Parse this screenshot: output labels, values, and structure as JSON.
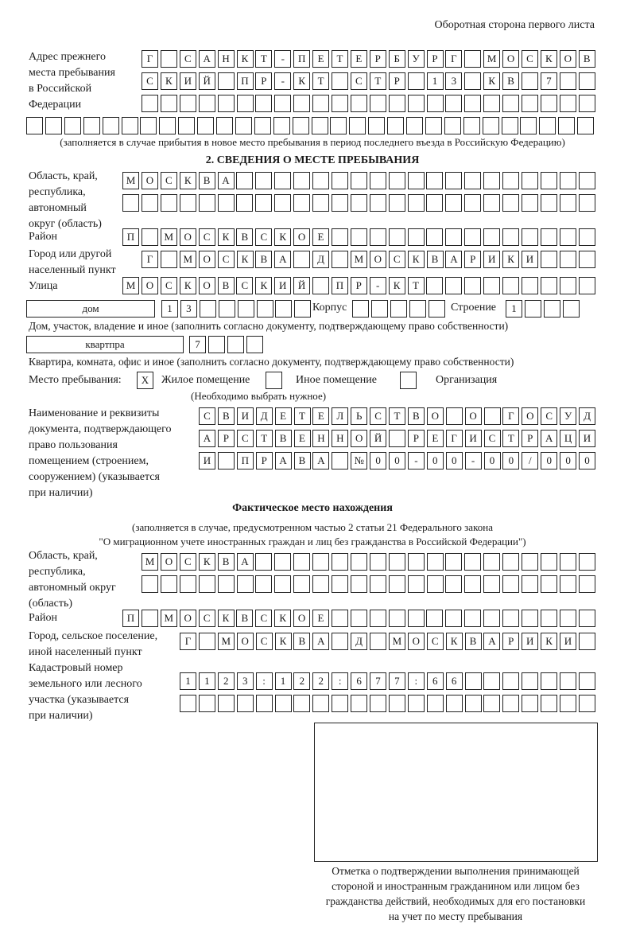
{
  "header": "Оборотная сторона первого листа",
  "previous_address": {
    "label": [
      "Адрес прежнего",
      "места пребывания",
      "в Российской",
      "Федерации"
    ],
    "rows": [
      [
        "Г",
        "",
        "С",
        "А",
        "Н",
        "К",
        "Т",
        "-",
        "П",
        "Е",
        "Т",
        "Е",
        "Р",
        "Б",
        "У",
        "Р",
        "Г",
        "",
        "М",
        "О",
        "С",
        "К",
        "О",
        "В"
      ],
      [
        "С",
        "К",
        "И",
        "Й",
        "",
        "П",
        "Р",
        "-",
        "К",
        "Т",
        "",
        "С",
        "Т",
        "Р",
        "",
        "1",
        "3",
        "",
        "К",
        "В",
        "",
        "7",
        "",
        ""
      ],
      [
        "",
        "",
        "",
        "",
        "",
        "",
        "",
        "",
        "",
        "",
        "",
        "",
        "",
        "",
        "",
        "",
        "",
        "",
        "",
        "",
        "",
        "",
        "",
        ""
      ],
      [
        "",
        "",
        "",
        "",
        "",
        "",
        "",
        "",
        "",
        "",
        "",
        "",
        "",
        "",
        "",
        "",
        "",
        "",
        "",
        "",
        "",
        "",
        "",
        "",
        "",
        "",
        "",
        "",
        "",
        ""
      ]
    ],
    "note": "(заполняется в случае прибытия в новое место пребывания в период последнего въезда в Российскую Федерацию)"
  },
  "section2": {
    "title": "2. СВЕДЕНИЯ О МЕСТЕ ПРЕБЫВАНИЯ",
    "region_label": [
      "Область, край,",
      "республика,",
      "автономный",
      "округ (область)"
    ],
    "region_rows": [
      [
        "М",
        "О",
        "С",
        "К",
        "В",
        "А",
        "",
        "",
        "",
        "",
        "",
        "",
        "",
        "",
        "",
        "",
        "",
        "",
        "",
        "",
        "",
        "",
        "",
        "",
        ""
      ],
      [
        "",
        "",
        "",
        "",
        "",
        "",
        "",
        "",
        "",
        "",
        "",
        "",
        "",
        "",
        "",
        "",
        "",
        "",
        "",
        "",
        "",
        "",
        "",
        "",
        ""
      ]
    ],
    "district_label": "Район",
    "district_row": [
      "П",
      "",
      "М",
      "О",
      "С",
      "К",
      "В",
      "С",
      "К",
      "О",
      "Е",
      "",
      "",
      "",
      "",
      "",
      "",
      "",
      "",
      "",
      "",
      "",
      "",
      "",
      ""
    ],
    "city_label": [
      "Город или другой",
      "населенный пункт"
    ],
    "city_row": [
      "Г",
      "",
      "М",
      "О",
      "С",
      "К",
      "В",
      "А",
      "",
      "Д",
      "",
      "М",
      "О",
      "С",
      "К",
      "В",
      "А",
      "Р",
      "И",
      "К",
      "И",
      "",
      "",
      ""
    ],
    "street_label": "Улица",
    "street_row": [
      "М",
      "О",
      "С",
      "К",
      "О",
      "В",
      "С",
      "К",
      "И",
      "Й",
      "",
      "П",
      "Р",
      "-",
      "К",
      "Т",
      "",
      "",
      "",
      "",
      "",
      "",
      "",
      "",
      ""
    ],
    "house_type": "дом",
    "house_cells": [
      "1",
      "3",
      "",
      "",
      "",
      "",
      "",
      ""
    ],
    "korpus_label": "Корпус",
    "korpus_cells": [
      "",
      "",
      "",
      "",
      ""
    ],
    "building_label": "Строение",
    "building_cells": [
      "1",
      "",
      "",
      ""
    ],
    "house_note": "Дом, участок, владение и иное (заполнить согласно документу, подтверждающему право собственности)",
    "flat_type": "квартпра",
    "flat_cells": [
      "7",
      "",
      "",
      ""
    ],
    "flat_note": "Квартира, комната, офис и иное (заполнить согласно документу, подтверждающему право собственности)",
    "place_label": "Место пребывания:",
    "place_options": [
      {
        "label": "Жилое помещение",
        "mark": "X"
      },
      {
        "label": "Иное помещение",
        "mark": ""
      },
      {
        "label": "Организация",
        "mark": ""
      }
    ],
    "place_note": "(Необходимо выбрать нужное)",
    "doc_label": [
      "Наименование и реквизиты",
      "документа, подтверждающего",
      "право пользования",
      "помещением (строением,",
      "сооружением) (указывается",
      "при наличии)"
    ],
    "doc_rows": [
      [
        "С",
        "В",
        "И",
        "Д",
        "Е",
        "Т",
        "Е",
        "Л",
        "Ь",
        "С",
        "Т",
        "В",
        "О",
        "",
        "О",
        "",
        "Г",
        "О",
        "С",
        "У",
        "Д"
      ],
      [
        "А",
        "Р",
        "С",
        "Т",
        "В",
        "Е",
        "Н",
        "Н",
        "О",
        "Й",
        "",
        "Р",
        "Е",
        "Г",
        "И",
        "С",
        "Т",
        "Р",
        "А",
        "Ц",
        "И"
      ],
      [
        "И",
        "",
        "П",
        "Р",
        "А",
        "В",
        "А",
        "",
        "№",
        "0",
        "0",
        "-",
        "0",
        "0",
        "-",
        "0",
        "0",
        "/",
        "0",
        "0",
        "0"
      ]
    ]
  },
  "actual": {
    "title": "Фактическое место нахождения",
    "note1": "(заполняется в случае, предусмотренном частью 2 статьи 21 Федерального закона",
    "note2": "\"О миграционном учете иностранных граждан и лиц без гражданства в Российской Федерации\")",
    "region_label": [
      "Область, край,",
      "республика,",
      "автономный округ",
      "(область)"
    ],
    "region_rows": [
      [
        "М",
        "О",
        "С",
        "К",
        "В",
        "А",
        "",
        "",
        "",
        "",
        "",
        "",
        "",
        "",
        "",
        "",
        "",
        "",
        "",
        "",
        "",
        "",
        "",
        ""
      ],
      [
        "",
        "",
        "",
        "",
        "",
        "",
        "",
        "",
        "",
        "",
        "",
        "",
        "",
        "",
        "",
        "",
        "",
        "",
        "",
        "",
        "",
        "",
        "",
        ""
      ]
    ],
    "district_label": "Район",
    "district_row": [
      "П",
      "",
      "М",
      "О",
      "С",
      "К",
      "В",
      "С",
      "К",
      "О",
      "Е",
      "",
      "",
      "",
      "",
      "",
      "",
      "",
      "",
      "",
      "",
      "",
      "",
      "",
      ""
    ],
    "city_label": [
      "Город, сельское поселение,",
      "иной населенный пункт"
    ],
    "city_row": [
      "Г",
      "",
      "М",
      "О",
      "С",
      "К",
      "В",
      "А",
      "",
      "Д",
      "",
      "М",
      "О",
      "С",
      "К",
      "В",
      "А",
      "Р",
      "И",
      "К",
      "И",
      ""
    ],
    "cadastre_label": [
      "Кадастровый номер",
      "земельного или лесного",
      "участка (указывается",
      "при наличии)"
    ],
    "cadastre_rows": [
      [
        "1",
        "1",
        "2",
        "3",
        ":",
        "1",
        "2",
        "2",
        ":",
        "6",
        "7",
        "7",
        ":",
        "6",
        "6",
        "",
        "",
        "",
        "",
        "",
        "",
        ""
      ],
      [
        "",
        "",
        "",
        "",
        "",
        "",
        "",
        "",
        "",
        "",
        "",
        "",
        "",
        "",
        "",
        "",
        "",
        "",
        "",
        "",
        "",
        ""
      ]
    ]
  },
  "confirmation": {
    "caption": [
      "Отметка о подтверждении выполнения принимающей",
      "стороной и иностранным гражданином или лицом без",
      "гражданства действий, необходимых для его постановки",
      "на учет по месту пребывания"
    ]
  }
}
